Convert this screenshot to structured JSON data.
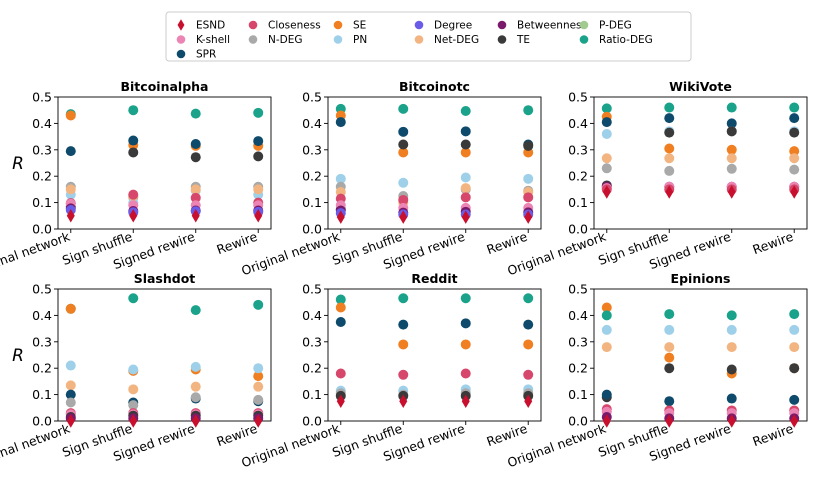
{
  "legend": {
    "entries": [
      {
        "name": "ESND",
        "color": "#c8102e",
        "marker": "diamond"
      },
      {
        "name": "Closeness",
        "color": "#d6476b",
        "marker": "circle"
      },
      {
        "name": "SE",
        "color": "#f07f22",
        "marker": "circle"
      },
      {
        "name": "Degree",
        "color": "#6b5ce7",
        "marker": "circle"
      },
      {
        "name": "Betweenness",
        "color": "#7a1a6b",
        "marker": "circle"
      },
      {
        "name": "P-DEG",
        "color": "#a2cc8f",
        "marker": "circle"
      },
      {
        "name": "K-shell",
        "color": "#ec84b4",
        "marker": "circle"
      },
      {
        "name": "N-DEG",
        "color": "#a9a9a9",
        "marker": "circle"
      },
      {
        "name": "PN",
        "color": "#9fd0ea",
        "marker": "circle"
      },
      {
        "name": "Net-DEG",
        "color": "#f2b582",
        "marker": "circle"
      },
      {
        "name": "TE",
        "color": "#3a3a3a",
        "marker": "circle"
      },
      {
        "name": "Ratio-DEG",
        "color": "#1aa38a",
        "marker": "circle"
      },
      {
        "name": "SPR",
        "color": "#0e4a6b",
        "marker": "circle"
      }
    ]
  },
  "chart_data": [
    {
      "type": "scatter",
      "title": "Bitcoinalpha",
      "ylabel": "R",
      "ylim": [
        0,
        0.5
      ],
      "yticks": [
        "0.0",
        "0.1",
        "0.2",
        "0.3",
        "0.4",
        "0.5"
      ],
      "categories": [
        "Original network",
        "Sign shuffle",
        "Signed rewire",
        "Rewire"
      ],
      "series": [
        {
          "name": "Ratio-DEG",
          "values": [
            0.435,
            0.45,
            0.437,
            0.44
          ]
        },
        {
          "name": "SE",
          "values": [
            0.43,
            0.318,
            0.315,
            0.315
          ]
        },
        {
          "name": "SPR",
          "values": [
            0.295,
            0.335,
            0.322,
            0.333
          ]
        },
        {
          "name": "TE",
          "values": [
            0.085,
            0.29,
            0.272,
            0.275
          ]
        },
        {
          "name": "N-DEG",
          "values": [
            0.16,
            0.12,
            0.16,
            0.16
          ]
        },
        {
          "name": "PN",
          "values": [
            0.13,
            0.1,
            0.145,
            0.13
          ]
        },
        {
          "name": "Net-DEG",
          "values": [
            0.15,
            0.125,
            0.15,
            0.15
          ]
        },
        {
          "name": "Closeness",
          "values": [
            0.098,
            0.13,
            0.118,
            0.1
          ]
        },
        {
          "name": "K-shell",
          "values": [
            0.095,
            0.09,
            0.09,
            0.09
          ]
        },
        {
          "name": "Betweenness",
          "values": [
            0.078,
            0.068,
            0.07,
            0.07
          ]
        },
        {
          "name": "Degree",
          "values": [
            0.072,
            0.063,
            0.067,
            0.065
          ]
        },
        {
          "name": "ESND",
          "values": [
            0.05,
            0.05,
            0.05,
            0.05
          ]
        }
      ]
    },
    {
      "type": "scatter",
      "title": "Bitcoinotc",
      "ylabel": "",
      "ylim": [
        0,
        0.5
      ],
      "yticks": [
        "0.0",
        "0.1",
        "0.2",
        "0.3",
        "0.4",
        "0.5"
      ],
      "categories": [
        "Original network",
        "Sign shuffle",
        "Signed rewire",
        "Rewire"
      ],
      "series": [
        {
          "name": "Ratio-DEG",
          "values": [
            0.455,
            0.455,
            0.447,
            0.45
          ]
        },
        {
          "name": "SE",
          "values": [
            0.43,
            0.29,
            0.29,
            0.29
          ]
        },
        {
          "name": "SPR",
          "values": [
            0.405,
            0.368,
            0.37,
            0.32
          ]
        },
        {
          "name": "TE",
          "values": [
            0.075,
            0.32,
            0.32,
            0.315
          ]
        },
        {
          "name": "PN",
          "values": [
            0.19,
            0.175,
            0.195,
            0.19
          ]
        },
        {
          "name": "N-DEG",
          "values": [
            0.16,
            0.125,
            0.15,
            0.145
          ]
        },
        {
          "name": "Net-DEG",
          "values": [
            0.14,
            0.1,
            0.155,
            0.14
          ]
        },
        {
          "name": "Closeness",
          "values": [
            0.115,
            0.11,
            0.12,
            0.12
          ]
        },
        {
          "name": "K-shell",
          "values": [
            0.09,
            0.08,
            0.08,
            0.08
          ]
        },
        {
          "name": "Betweenness",
          "values": [
            0.07,
            0.062,
            0.065,
            0.063
          ]
        },
        {
          "name": "Degree",
          "values": [
            0.06,
            0.055,
            0.055,
            0.055
          ]
        },
        {
          "name": "ESND",
          "values": [
            0.045,
            0.045,
            0.045,
            0.045
          ]
        }
      ]
    },
    {
      "type": "scatter",
      "title": "WikiVote",
      "ylabel": "",
      "ylim": [
        0,
        0.5
      ],
      "yticks": [
        "0.0",
        "0.1",
        "0.2",
        "0.3",
        "0.4",
        "0.5"
      ],
      "categories": [
        "Original network",
        "Sign shuffle",
        "Signed rewire",
        "Rewire"
      ],
      "series": [
        {
          "name": "Ratio-DEG",
          "values": [
            0.457,
            0.46,
            0.46,
            0.46
          ]
        },
        {
          "name": "SE",
          "values": [
            0.425,
            0.305,
            0.3,
            0.295
          ]
        },
        {
          "name": "SPR",
          "values": [
            0.405,
            0.42,
            0.4,
            0.42
          ]
        },
        {
          "name": "PN",
          "values": [
            0.36,
            0.37,
            0.37,
            0.37
          ]
        },
        {
          "name": "TE",
          "values": [
            0.165,
            0.365,
            0.37,
            0.365
          ]
        },
        {
          "name": "Net-DEG",
          "values": [
            0.268,
            0.268,
            0.268,
            0.268
          ]
        },
        {
          "name": "N-DEG",
          "values": [
            0.23,
            0.22,
            0.228,
            0.225
          ]
        },
        {
          "name": "Betweenness",
          "values": [
            0.16,
            0.16,
            0.16,
            0.16
          ]
        },
        {
          "name": "K-shell",
          "values": [
            0.155,
            0.16,
            0.16,
            0.16
          ]
        },
        {
          "name": "Closeness",
          "values": [
            0.15,
            0.15,
            0.15,
            0.15
          ]
        },
        {
          "name": "ESND",
          "values": [
            0.14,
            0.14,
            0.14,
            0.14
          ]
        }
      ]
    },
    {
      "type": "scatter",
      "title": "Slashdot",
      "ylabel": "R",
      "ylim": [
        0,
        0.5
      ],
      "yticks": [
        "0.0",
        "0.1",
        "0.2",
        "0.3",
        "0.4",
        "0.5"
      ],
      "categories": [
        "Original network",
        "Sign shuffle",
        "Signed rewire",
        "Rewire"
      ],
      "series": [
        {
          "name": "Ratio-DEG",
          "values": [
            0.425,
            0.465,
            0.42,
            0.44
          ]
        },
        {
          "name": "SE",
          "values": [
            0.425,
            0.19,
            0.195,
            0.17
          ]
        },
        {
          "name": "PN",
          "values": [
            0.21,
            0.195,
            0.205,
            0.2
          ]
        },
        {
          "name": "Net-DEG",
          "values": [
            0.135,
            0.12,
            0.13,
            0.13
          ]
        },
        {
          "name": "SPR",
          "values": [
            0.1,
            0.07,
            0.085,
            0.075
          ]
        },
        {
          "name": "N-DEG",
          "values": [
            0.07,
            0.06,
            0.09,
            0.08
          ]
        },
        {
          "name": "Closeness",
          "values": [
            0.03,
            0.03,
            0.03,
            0.03
          ]
        },
        {
          "name": "K-shell",
          "values": [
            0.025,
            0.025,
            0.025,
            0.025
          ]
        },
        {
          "name": "TE",
          "values": [
            0.015,
            0.02,
            0.02,
            0.02
          ]
        },
        {
          "name": "Betweenness",
          "values": [
            0.01,
            0.01,
            0.01,
            0.01
          ]
        },
        {
          "name": "ESND",
          "values": [
            0.0,
            0.0,
            0.0,
            0.0
          ]
        }
      ]
    },
    {
      "type": "scatter",
      "title": "Reddit",
      "ylabel": "",
      "ylim": [
        0,
        0.5
      ],
      "yticks": [
        "0.0",
        "0.1",
        "0.2",
        "0.3",
        "0.4",
        "0.5"
      ],
      "categories": [
        "Original network",
        "Sign shuffle",
        "Signed rewire",
        "Rewire"
      ],
      "series": [
        {
          "name": "Ratio-DEG",
          "values": [
            0.46,
            0.465,
            0.465,
            0.465
          ]
        },
        {
          "name": "SE",
          "values": [
            0.43,
            0.29,
            0.29,
            0.29
          ]
        },
        {
          "name": "SPR",
          "values": [
            0.375,
            0.365,
            0.37,
            0.365
          ]
        },
        {
          "name": "Closeness",
          "values": [
            0.18,
            0.175,
            0.18,
            0.175
          ]
        },
        {
          "name": "PN",
          "values": [
            0.115,
            0.115,
            0.12,
            0.12
          ]
        },
        {
          "name": "N-DEG",
          "values": [
            0.105,
            0.1,
            0.105,
            0.105
          ]
        },
        {
          "name": "TE",
          "values": [
            0.095,
            0.095,
            0.095,
            0.095
          ]
        },
        {
          "name": "ESND",
          "values": [
            0.075,
            0.075,
            0.075,
            0.075
          ]
        }
      ]
    },
    {
      "type": "scatter",
      "title": "Epinions",
      "ylabel": "",
      "ylim": [
        0,
        0.5
      ],
      "yticks": [
        "0.0",
        "0.1",
        "0.2",
        "0.3",
        "0.4",
        "0.5"
      ],
      "categories": [
        "Original network",
        "Sign shuffle",
        "Signed rewire",
        "Rewire"
      ],
      "series": [
        {
          "name": "SE",
          "values": [
            0.43,
            0.24,
            0.18,
            0.2
          ]
        },
        {
          "name": "Ratio-DEG",
          "values": [
            0.4,
            0.405,
            0.4,
            0.405
          ]
        },
        {
          "name": "PN",
          "values": [
            0.345,
            0.345,
            0.345,
            0.345
          ]
        },
        {
          "name": "Net-DEG",
          "values": [
            0.28,
            0.28,
            0.28,
            0.28
          ]
        },
        {
          "name": "TE",
          "values": [
            0.09,
            0.2,
            0.195,
            0.2
          ]
        },
        {
          "name": "SPR",
          "values": [
            0.1,
            0.075,
            0.085,
            0.08
          ]
        },
        {
          "name": "Closeness",
          "values": [
            0.045,
            0.04,
            0.04,
            0.04
          ]
        },
        {
          "name": "K-shell",
          "values": [
            0.035,
            0.03,
            0.03,
            0.03
          ]
        },
        {
          "name": "Betweenness",
          "values": [
            0.015,
            0.01,
            0.01,
            0.01
          ]
        },
        {
          "name": "ESND",
          "values": [
            0.0,
            0.0,
            0.0,
            0.0
          ]
        }
      ]
    }
  ]
}
